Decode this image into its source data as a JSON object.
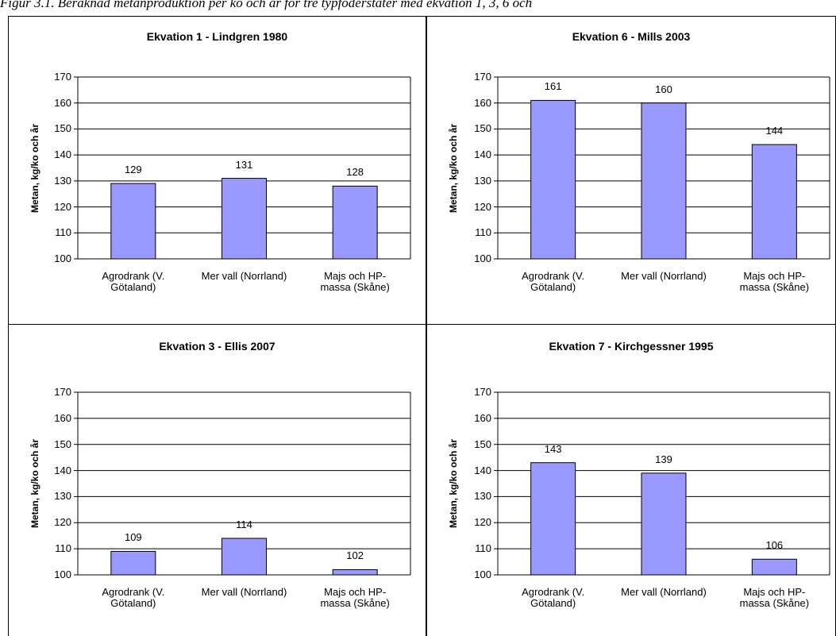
{
  "caption": "Figur 3.1. Beräknad metanproduktion per ko och år för tre typfoderstater med ekvation 1, 3, 6 och",
  "chart_data": [
    {
      "type": "bar",
      "title": "Ekvation 1 - Lindgren 1980",
      "y_label": "Metan, kg/ko och år",
      "categories": [
        "Agrodrank (V.\nGötaland)",
        "Mer vall (Norrland)",
        "Majs och HP-\nmassa (Skåne)"
      ],
      "values": [
        129,
        131,
        128
      ],
      "color": "#9999ff",
      "ylim": [
        100,
        170
      ],
      "yticks": [
        100,
        110,
        120,
        130,
        140,
        150,
        160,
        170
      ],
      "grid": true
    },
    {
      "type": "bar",
      "title": "Ekvation 6 - Mills 2003",
      "y_label": "Metan, kg/ko och år",
      "categories": [
        "Agrodrank (V.\nGötaland)",
        "Mer vall (Norrland)",
        "Majs och HP-\nmassa (Skåne)"
      ],
      "values": [
        161,
        160,
        144
      ],
      "color": "#9999ff",
      "ylim": [
        100,
        170
      ],
      "yticks": [
        100,
        110,
        120,
        130,
        140,
        150,
        160,
        170
      ],
      "grid": true
    },
    {
      "type": "bar",
      "title": "Ekvation 3 - Ellis 2007",
      "y_label": "Metan, kg/ko och år",
      "categories": [
        "Agrodrank (V.\nGötaland)",
        "Mer vall (Norrland)",
        "Majs och HP-\nmassa (Skåne)"
      ],
      "values": [
        109,
        114,
        102
      ],
      "color": "#9999ff",
      "ylim": [
        100,
        170
      ],
      "yticks": [
        100,
        110,
        120,
        130,
        140,
        150,
        160,
        170
      ],
      "grid": true
    },
    {
      "type": "bar",
      "title": "Ekvation 7 - Kirchgessner  1995",
      "y_label": "Metan, kg/ko och år",
      "categories": [
        "Agrodrank (V.\nGötaland)",
        "Mer vall (Norrland)",
        "Majs och HP-\nmassa (Skåne)"
      ],
      "values": [
        143,
        139,
        106
      ],
      "color": "#9999ff",
      "ylim": [
        100,
        170
      ],
      "yticks": [
        100,
        110,
        120,
        130,
        140,
        150,
        160,
        170
      ],
      "grid": true
    }
  ]
}
